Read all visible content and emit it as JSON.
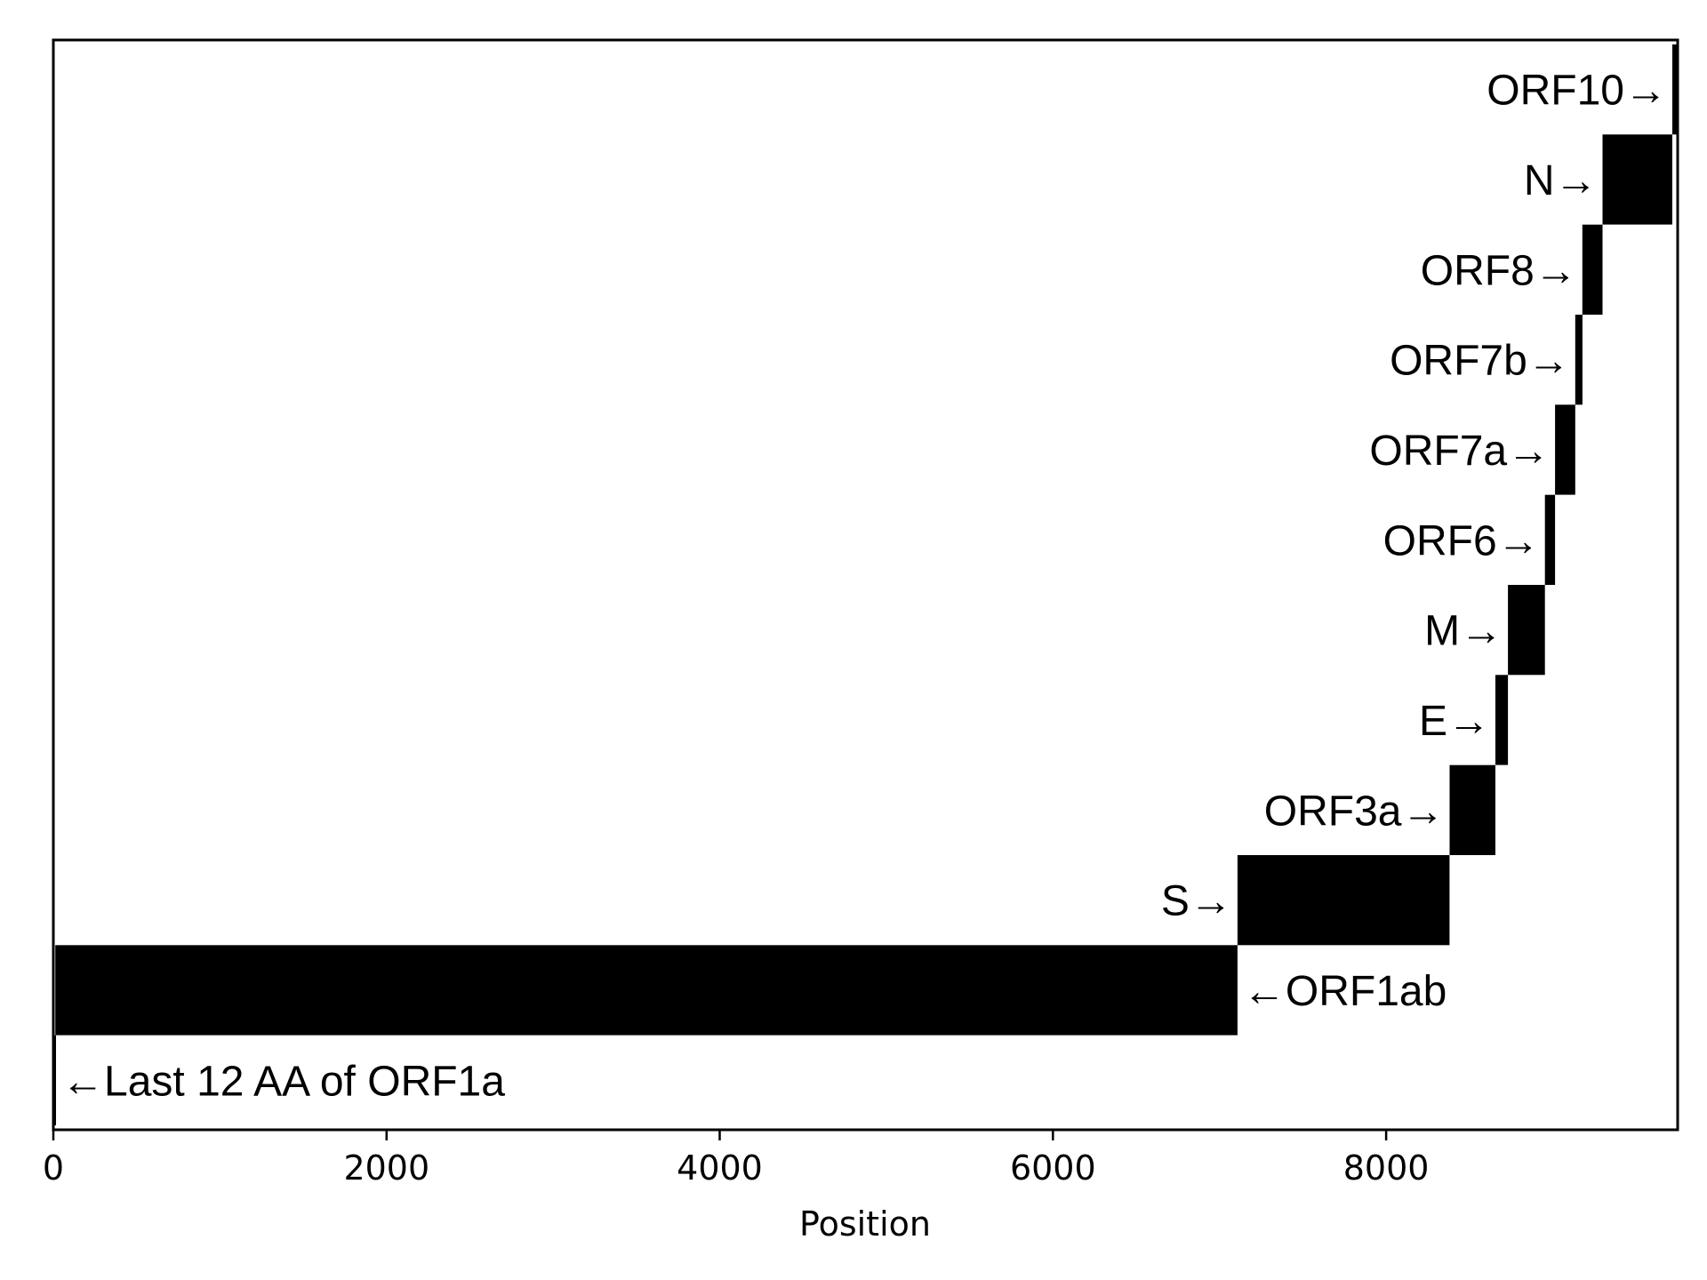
{
  "chart_data": {
    "type": "bar",
    "orientation": "horizontal",
    "xlabel": "Position",
    "ylabel": "",
    "title": "",
    "xlim": [
      0,
      9750
    ],
    "xticks": [
      0,
      2000,
      4000,
      6000,
      8000
    ],
    "grid": false,
    "bars": [
      {
        "label": "←Last 12 AA of ORF1a",
        "start": 0,
        "end": 12,
        "label_side": "right"
      },
      {
        "label": "←ORF1ab",
        "start": 12,
        "end": 7108,
        "label_side": "right"
      },
      {
        "label": "S→",
        "start": 7108,
        "end": 8381,
        "label_side": "left"
      },
      {
        "label": "ORF3a→",
        "start": 8381,
        "end": 8656,
        "label_side": "left"
      },
      {
        "label": "E→",
        "start": 8656,
        "end": 8731,
        "label_side": "left"
      },
      {
        "label": "M→",
        "start": 8731,
        "end": 8953,
        "label_side": "left"
      },
      {
        "label": "ORF6→",
        "start": 8953,
        "end": 9014,
        "label_side": "left"
      },
      {
        "label": "ORF7a→",
        "start": 9014,
        "end": 9135,
        "label_side": "left"
      },
      {
        "label": "ORF7b→",
        "start": 9135,
        "end": 9178,
        "label_side": "left"
      },
      {
        "label": "ORF8→",
        "start": 9178,
        "end": 9299,
        "label_side": "left"
      },
      {
        "label": "N→",
        "start": 9299,
        "end": 9718,
        "label_side": "left"
      },
      {
        "label": "ORF10→",
        "start": 9718,
        "end": 9756,
        "label_side": "left"
      }
    ]
  }
}
